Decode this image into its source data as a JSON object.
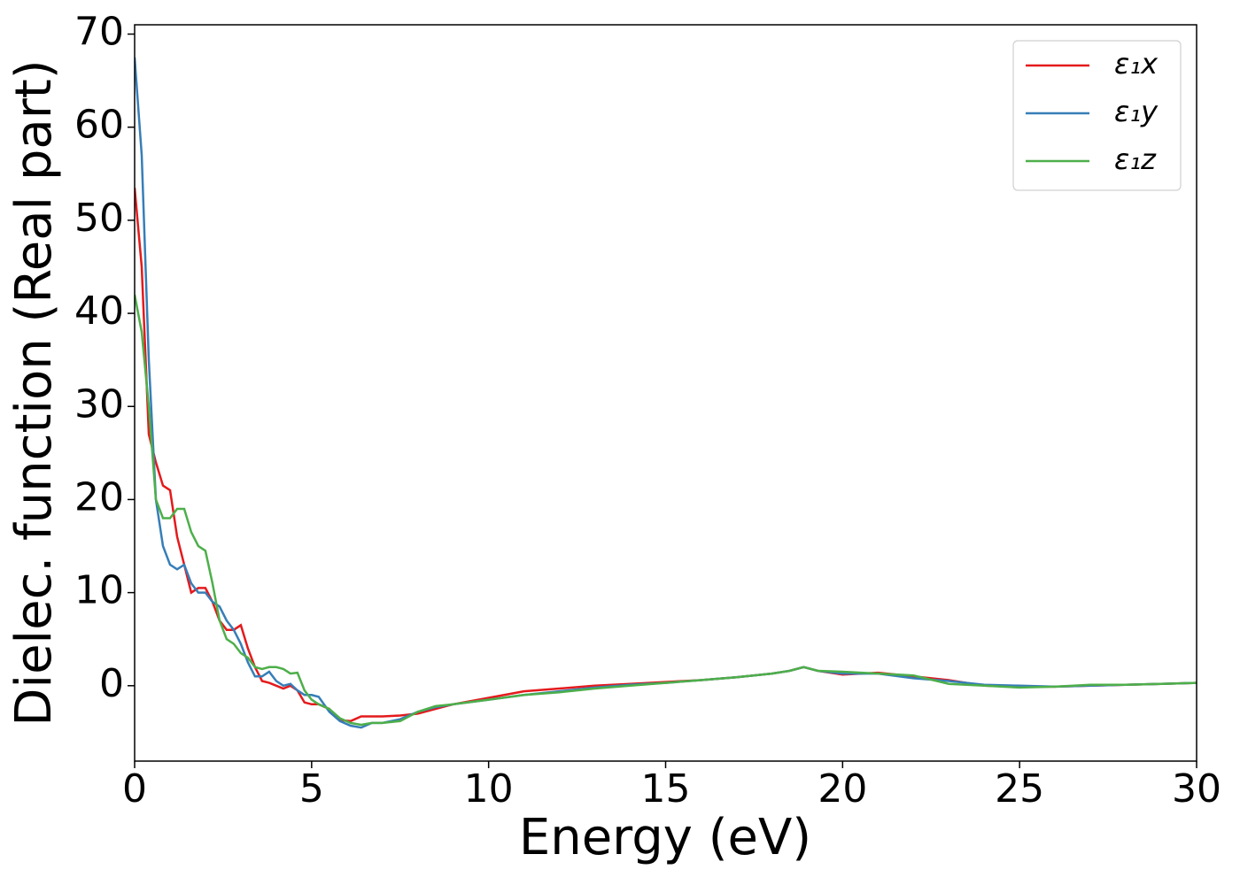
{
  "chart_data": {
    "type": "line",
    "xlabel": "Energy (eV)",
    "ylabel": "Dielec. function (Real part)",
    "x": [
      0,
      0.2,
      0.4,
      0.6,
      0.8,
      1.0,
      1.2,
      1.4,
      1.6,
      1.8,
      2.0,
      2.2,
      2.4,
      2.6,
      2.8,
      3.0,
      3.2,
      3.4,
      3.6,
      3.8,
      4.0,
      4.2,
      4.4,
      4.6,
      4.8,
      5.0,
      5.2,
      5.5,
      5.8,
      6.1,
      6.4,
      6.7,
      7.0,
      7.5,
      8.0,
      8.5,
      9,
      10,
      11,
      12,
      13,
      14,
      15,
      16,
      17,
      18,
      18.5,
      18.9,
      19.3,
      20,
      21,
      22,
      23,
      24,
      25,
      26,
      27,
      28,
      29,
      30
    ],
    "series": [
      {
        "name": "ε₁x",
        "color": "#e41a1c",
        "values": [
          53.5,
          45,
          27,
          24,
          21.5,
          21,
          16,
          13,
          10,
          10.5,
          10.5,
          9,
          7,
          6,
          6,
          6.5,
          4,
          2,
          0.5,
          0.3,
          0,
          -0.3,
          0,
          -0.5,
          -1.8,
          -2,
          -2,
          -2.5,
          -3.7,
          -3.8,
          -3.3,
          -3.3,
          -3.3,
          -3.2,
          -3.0,
          -2.5,
          -2,
          -1.3,
          -0.6,
          -0.3,
          0,
          0.2,
          0.4,
          0.6,
          0.9,
          1.3,
          1.6,
          2.0,
          1.6,
          1.2,
          1.4,
          1.0,
          0.6,
          0,
          -0.1,
          -0.1,
          0,
          0.1,
          0.2,
          0.3
        ]
      },
      {
        "name": "ε₁y",
        "color": "#377eb8",
        "values": [
          67.5,
          57,
          35,
          20,
          15,
          13,
          12.5,
          13,
          11,
          10,
          10,
          9,
          8.5,
          7,
          6,
          4.5,
          2.5,
          1,
          1.0,
          1.5,
          0.5,
          0,
          0.2,
          -0.5,
          -1,
          -1,
          -1.2,
          -2.8,
          -3.8,
          -4.3,
          -4.5,
          -4.0,
          -4.0,
          -3.6,
          -2.8,
          -2.3,
          -2.0,
          -1.5,
          -1.0,
          -0.6,
          -0.2,
          0.1,
          0.3,
          0.6,
          0.9,
          1.3,
          1.6,
          2.0,
          1.6,
          1.3,
          1.3,
          0.8,
          0.5,
          0.1,
          0,
          -0.1,
          0,
          0.1,
          0.2,
          0.3
        ]
      },
      {
        "name": "ε₁z",
        "color": "#4daf4a",
        "values": [
          42,
          38,
          30,
          20,
          18,
          18,
          19,
          19,
          16.5,
          15,
          14.5,
          11,
          7,
          5,
          4.5,
          3.5,
          3,
          2,
          1.8,
          2,
          2,
          1.8,
          1.3,
          1.4,
          -0.5,
          -1.5,
          -2,
          -2.5,
          -3.5,
          -4.0,
          -4.2,
          -4.0,
          -4.0,
          -3.8,
          -2.8,
          -2.2,
          -2.0,
          -1.5,
          -1.0,
          -0.7,
          -0.3,
          0,
          0.3,
          0.6,
          0.9,
          1.3,
          1.6,
          2.0,
          1.6,
          1.5,
          1.3,
          1.1,
          0.2,
          0,
          -0.2,
          -0.1,
          0.1,
          0.1,
          0.2,
          0.3
        ]
      }
    ],
    "xlim": [
      0,
      30
    ],
    "xticks": [
      0,
      5,
      10,
      15,
      20,
      25,
      30
    ],
    "ylim": [
      -8.1,
      71.0
    ],
    "yticks": [
      0,
      10,
      20,
      30,
      40,
      50,
      60,
      70
    ],
    "grid": false,
    "legend": "upper right"
  }
}
